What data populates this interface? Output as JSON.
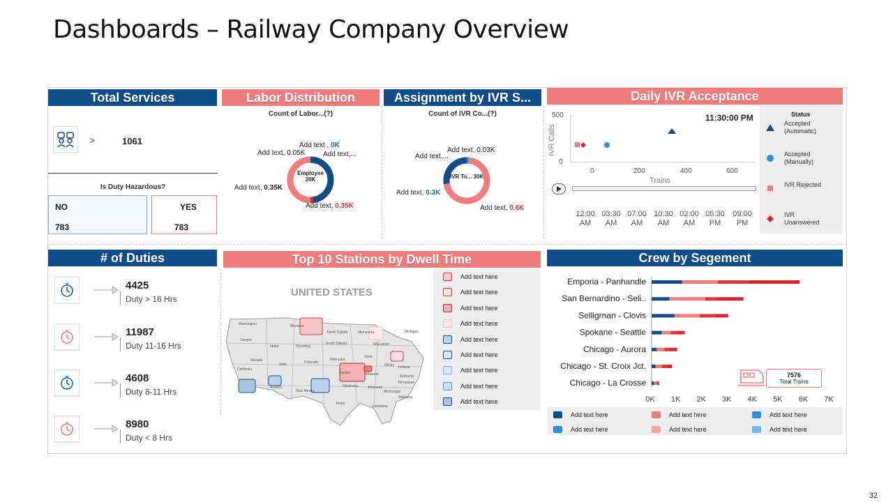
{
  "title": "Dashboards – Railway Company Overview",
  "page_number": "32",
  "total_services": {
    "header": "Total Services",
    "value": "1061",
    "arrow": ">",
    "hazard_question": "Is Duty Hazardous?",
    "no_label": "NO",
    "no_value": "783",
    "yes_label": "YES",
    "yes_value": "783"
  },
  "labor": {
    "header": "Labor Distribution",
    "subtitle": "Count of Labor...(?)",
    "center": "Employee 30K",
    "labels": [
      {
        "prefix": "Add text , ",
        "value": "0K"
      },
      {
        "prefix": "Add text, 0.05K",
        "value": ""
      },
      {
        "prefix": "Add text,",
        "value": "..."
      },
      {
        "prefix": "Add text, ",
        "value": "0.35K"
      },
      {
        "prefix": "Add text, ",
        "value": "0.35K"
      }
    ]
  },
  "ivr": {
    "header": "Assignment by IVR S...",
    "subtitle": "Count of IVR Co...(?)",
    "center": "IVR To... 30K",
    "labels": [
      {
        "prefix": "Add text, 0.03K",
        "value": ""
      },
      {
        "prefix": "Add text,...",
        "value": ""
      },
      {
        "prefix": "Add text, ",
        "value": "0.3K"
      },
      {
        "prefix": "Add text, ",
        "value": "0.6K"
      }
    ]
  },
  "daily_ivr": {
    "header": "Daily IVR Acceptance",
    "time": "11:30:00 PM",
    "ylabel": "IVR Calls",
    "xlabel": "Trains",
    "y_ticks": [
      "500",
      "0"
    ],
    "x_ticks": [
      "0",
      "200",
      "400",
      "600"
    ],
    "timeline": [
      "12:00 AM",
      "03:30 AM",
      "07:00 AM",
      "10:30 AM",
      "02:00 AM",
      "05:30 PM",
      "09:00 PM"
    ],
    "status_title": "Status",
    "status": [
      {
        "label": "Accepted (Automatic)",
        "color": "#0f4c8a",
        "shape": "triangle"
      },
      {
        "label": "Accepted (Manually)",
        "color": "#2d8fe0",
        "shape": "circle"
      },
      {
        "label": "IVR Rejected",
        "color": "#f07c7e",
        "shape": "square"
      },
      {
        "label": "IVR Unanswered",
        "color": "#d9262b",
        "shape": "diamond"
      }
    ]
  },
  "duties": {
    "header": "# of Duties",
    "items": [
      {
        "value": "4425",
        "label": "Duty > 16 Hrs",
        "icon_color": "#1d67b3"
      },
      {
        "value": "11987",
        "label": "Duty 11-16 Hrs",
        "icon_color": "#f07c7e"
      },
      {
        "value": "4608",
        "label": "Duty 8-11 Hrs",
        "icon_color": "#1d67b3"
      },
      {
        "value": "8980",
        "label": "Duty < 8 Hrs",
        "icon_color": "#f07c7e"
      }
    ]
  },
  "stations": {
    "header": "Top 10 Stations by Dwell Time",
    "map_title": "UNITED STATES",
    "states": [
      "Washington",
      "Montana",
      "North Dakota",
      "Minnesota",
      "Oregon",
      "Idaho",
      "Wyoming",
      "South Dakota",
      "Wisconsin",
      "Michigan",
      "Nevada",
      "Utah",
      "Colorado",
      "Nebraska",
      "Iowa",
      "Illinois",
      "Indiana",
      "California",
      "Kansas",
      "Missouri",
      "Kentucky",
      "Tennessee",
      "Arizona",
      "New Mexico",
      "Oklahoma",
      "Arkansas",
      "Mississippi",
      "Alabama",
      "Texas",
      "Louisiana"
    ],
    "legend": [
      {
        "label": "Add text here",
        "color": "#f9c7c8",
        "border": "#d9383a"
      },
      {
        "label": "Add text here",
        "color": "#fde0e0",
        "border": "#d9383a"
      },
      {
        "label": "Add text here",
        "color": "#f6b1b2",
        "border": "#b02a2c"
      },
      {
        "label": "Add text here",
        "color": "#fde9e9",
        "border": "#f3c0c0"
      },
      {
        "label": "Add text here",
        "color": "#b9d3ef",
        "border": "#1d4f85"
      },
      {
        "label": "Add text here",
        "color": "#d9e8f7",
        "border": "#1d4f85"
      },
      {
        "label": "Add text here",
        "color": "#d9e8f7",
        "border": "#7fb2e0"
      },
      {
        "label": "Add text here",
        "color": "#cbe1f5",
        "border": "#4b90d0"
      },
      {
        "label": "Add text here",
        "color": "#a9c4df",
        "border": "#1d4f85"
      }
    ]
  },
  "crew": {
    "header": "Crew by Segement",
    "total_value": "7576",
    "total_label": "Total Trains",
    "legend": [
      {
        "label": "Add text here",
        "color": "#0f4c8a"
      },
      {
        "label": "Add text here",
        "color": "#f07c7e"
      },
      {
        "label": "Add text here",
        "color": "#2d8fe0"
      },
      {
        "label": "Add text here",
        "color": "#2d8fe0"
      },
      {
        "label": "Add text here",
        "color": "#f5a3a4"
      },
      {
        "label": "Add text here",
        "color": "#6fb5ef"
      }
    ]
  },
  "chart_data": {
    "type": "bar",
    "orientation": "horizontal",
    "stacked": true,
    "categories": [
      "Emporia - Panhandle",
      "San Bernardino - Seli..",
      "Selligrnan - Clovis",
      "Spokane - Seattle",
      "Chicago - Aurora",
      "Chicago - St. Croix Jct.",
      "Chicago - La Crosse"
    ],
    "x_ticks": [
      "0K",
      "1K",
      "2K",
      "3K",
      "4K",
      "5K",
      "6K",
      "7K"
    ],
    "xlim": [
      0,
      7000
    ],
    "series": [
      {
        "values": [
          1200,
          700,
          900,
          400,
          200,
          150,
          100
        ],
        "color": "#0f4c8a"
      },
      {
        "values": [
          1400,
          1400,
          1000,
          350,
          300,
          250,
          100
        ],
        "color": "#f07c7e"
      },
      {
        "values": [
          1200,
          400,
          600,
          250,
          200,
          200,
          100
        ],
        "color": "#d9383a"
      },
      {
        "values": [
          2000,
          1100,
          500,
          300,
          300,
          200,
          0
        ],
        "color": "#d9262b"
      }
    ],
    "grid": false,
    "legend_placement": "bottom"
  }
}
